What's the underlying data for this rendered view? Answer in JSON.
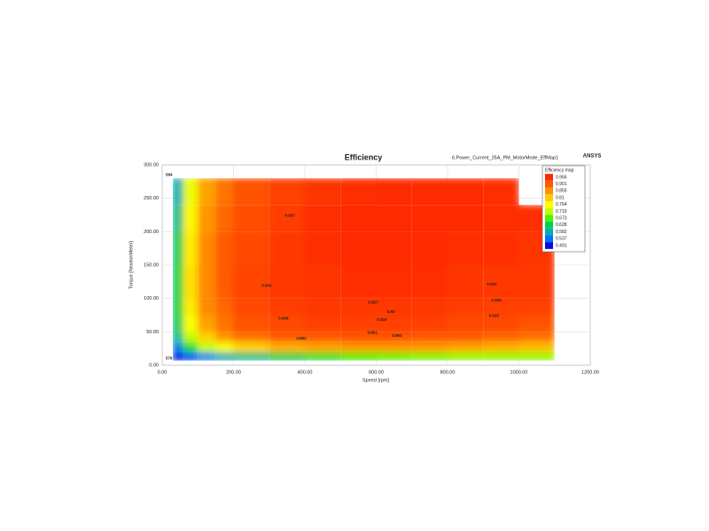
{
  "chart_data": {
    "type": "heatmap",
    "title": "Efficiency",
    "subtitle": "6.Power_Current_25A_PM_MotorMode_EffMap1",
    "brand": "ANSYS",
    "x_label": "Speed [rpm]",
    "y_label": "Torque [NewtonMeter]",
    "xlim": [
      0,
      1200
    ],
    "ylim": [
      0,
      300
    ],
    "xticks": [
      {
        "value": 0,
        "label": "0.00"
      },
      {
        "value": 200,
        "label": "200.00"
      },
      {
        "value": 400,
        "label": "400.00"
      },
      {
        "value": 600,
        "label": "600.00"
      },
      {
        "value": 800,
        "label": "800.00"
      },
      {
        "value": 1000,
        "label": "1000.00"
      },
      {
        "value": 1200,
        "label": "1200.00"
      }
    ],
    "yticks": [
      {
        "value": 0,
        "label": "0.00"
      },
      {
        "value": 50,
        "label": "50.00"
      },
      {
        "value": 100,
        "label": "100.00"
      },
      {
        "value": 150,
        "label": "150.00"
      },
      {
        "value": 200,
        "label": "200.00"
      },
      {
        "value": 250,
        "label": "250.00"
      },
      {
        "value": 300,
        "label": "300.00"
      }
    ],
    "grid": true,
    "x_bins": [
      30,
      60,
      100,
      150,
      200,
      300,
      400,
      500,
      600,
      700,
      800,
      900,
      1000,
      1100
    ],
    "y_bins": [
      7,
      20,
      35,
      50,
      75,
      100,
      150,
      200,
      240,
      280
    ],
    "z": [
      [
        0.49,
        0.52,
        0.55,
        0.58,
        0.6,
        0.63,
        0.65,
        0.67,
        0.68,
        0.69,
        0.7,
        0.7,
        0.7
      ],
      [
        0.55,
        0.65,
        0.72,
        0.76,
        0.8,
        0.83,
        0.84,
        0.85,
        0.85,
        0.85,
        0.84,
        0.83,
        0.82
      ],
      [
        0.6,
        0.72,
        0.8,
        0.85,
        0.88,
        0.9,
        0.9,
        0.91,
        0.91,
        0.9,
        0.9,
        0.89,
        0.88
      ],
      [
        0.62,
        0.76,
        0.84,
        0.88,
        0.91,
        0.92,
        0.93,
        0.93,
        0.93,
        0.93,
        0.92,
        0.92,
        0.91
      ],
      [
        0.63,
        0.78,
        0.86,
        0.89,
        0.92,
        0.935,
        0.94,
        0.94,
        0.94,
        0.94,
        0.935,
        0.93,
        0.93
      ],
      [
        0.63,
        0.79,
        0.86,
        0.9,
        0.925,
        0.94,
        0.945,
        0.95,
        0.95,
        0.95,
        0.945,
        0.94,
        0.94
      ],
      [
        0.62,
        0.78,
        0.86,
        0.9,
        0.92,
        0.94,
        0.95,
        0.955,
        0.956,
        0.955,
        0.95,
        0.95,
        0.945
      ],
      [
        0.6,
        0.77,
        0.85,
        0.89,
        0.915,
        0.935,
        0.95,
        0.955,
        0.956,
        0.956,
        0.955,
        0.95,
        0.95
      ],
      [
        0.58,
        0.75,
        0.84,
        0.88,
        0.91,
        0.93,
        0.945,
        0.95,
        0.955,
        0.955,
        0.955,
        0.95,
        null
      ]
    ],
    "legend_title": "Efficiency map",
    "legend": [
      {
        "value": 0.956,
        "color": "#ff2a00"
      },
      {
        "value": 0.901,
        "color": "#ff5a00"
      },
      {
        "value": 0.855,
        "color": "#ff9000"
      },
      {
        "value": 0.81,
        "color": "#ffc800"
      },
      {
        "value": 0.764,
        "color": "#ffff00"
      },
      {
        "value": 0.719,
        "color": "#c0ff00"
      },
      {
        "value": 0.673,
        "color": "#50f000"
      },
      {
        "value": 0.628,
        "color": "#00d050"
      },
      {
        "value": 0.582,
        "color": "#00b0b0"
      },
      {
        "value": 0.537,
        "color": "#0070ff"
      },
      {
        "value": 0.491,
        "color": "#0010e0"
      }
    ],
    "contour_labels": [
      {
        "value": 0.957,
        "speed": 591,
        "torque": 94
      },
      {
        "value": 0.931,
        "speed": 924,
        "torque": 121
      },
      {
        "value": 0.926,
        "speed": 937,
        "torque": 97
      },
      {
        "value": 0.93,
        "speed": 641,
        "torque": 80
      },
      {
        "value": 0.919,
        "speed": 616,
        "torque": 68
      },
      {
        "value": 0.915,
        "speed": 930,
        "torque": 74
      },
      {
        "value": 0.861,
        "speed": 589,
        "torque": 49
      },
      {
        "value": 0.893,
        "speed": 658,
        "torque": 44
      },
      {
        "value": 0.932,
        "speed": 293,
        "torque": 119
      },
      {
        "value": 0.937,
        "speed": 358,
        "torque": 224
      },
      {
        "value": 0.909,
        "speed": 340,
        "torque": 70
      },
      {
        "value": 0.852,
        "speed": 390,
        "torque": 40
      }
    ],
    "corner_labels": [
      {
        "text": "584",
        "speed": 10,
        "torque": 285
      },
      {
        "text": "576",
        "speed": 10,
        "torque": 10
      }
    ]
  }
}
